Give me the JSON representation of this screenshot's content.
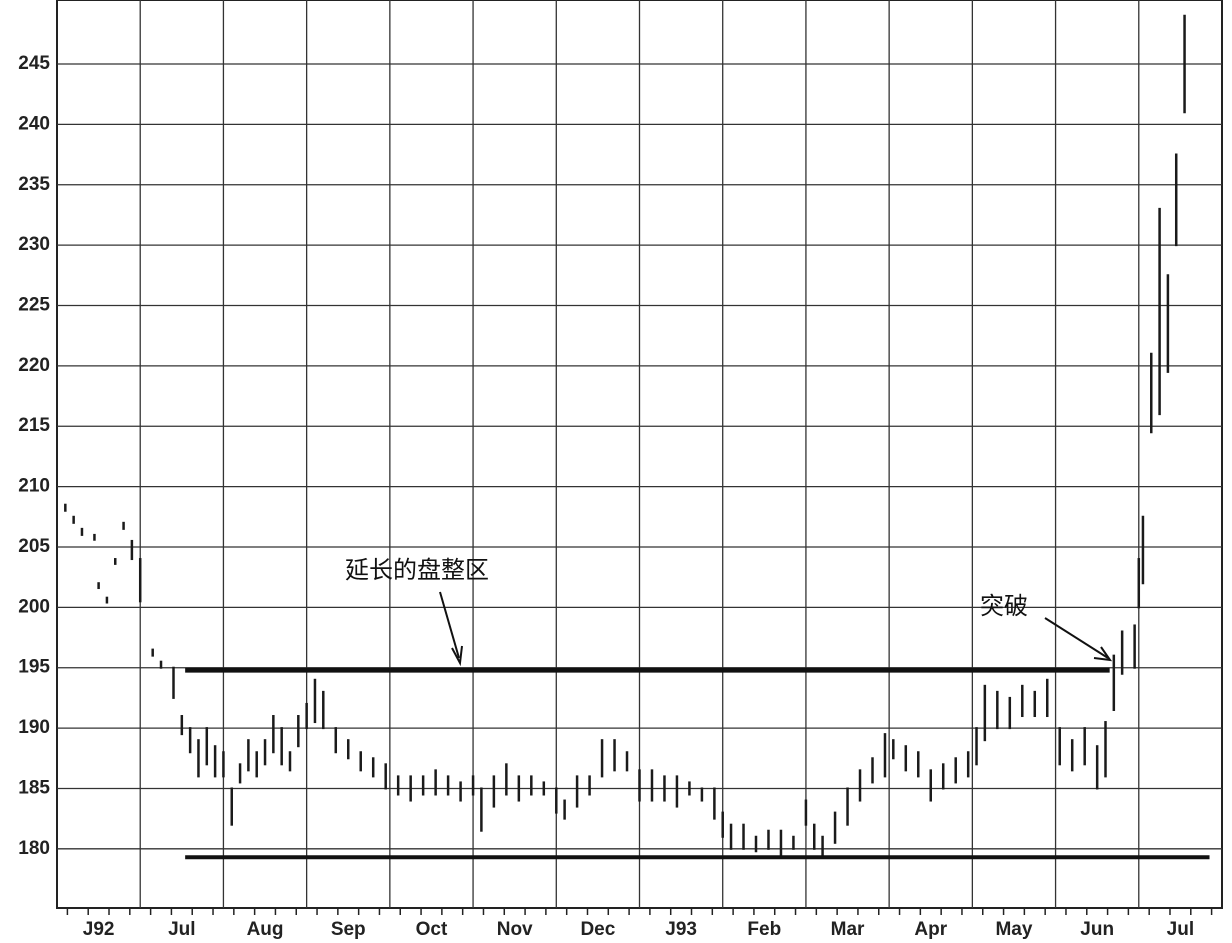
{
  "chart_data": {
    "type": "hilo",
    "categories": [
      "J92",
      "Jul",
      "Aug",
      "Sep",
      "Oct",
      "Nov",
      "Dec",
      "J93",
      "Feb",
      "Mar",
      "Apr",
      "May",
      "Jun",
      "Jul"
    ],
    "xlim": [
      0,
      14
    ],
    "ylim": [
      175.1,
      250.3
    ],
    "yticks": [
      180,
      185,
      190,
      195,
      200,
      205,
      210,
      215,
      220,
      225,
      230,
      235,
      240,
      245
    ],
    "grid": true,
    "series": [
      {
        "color": "#1a1a1a",
        "x": [
          0.1,
          0.2,
          0.3,
          0.45,
          0.5,
          0.6,
          0.7,
          0.8,
          0.9,
          1.0,
          1.15,
          1.25,
          1.4,
          1.5,
          1.6,
          1.7,
          1.8,
          1.9,
          2.0,
          2.1,
          2.2,
          2.3,
          2.4,
          2.5,
          2.6,
          2.7,
          2.8,
          2.9,
          3.0,
          3.1,
          3.2,
          3.35,
          3.5,
          3.65,
          3.8,
          3.95,
          4.1,
          4.25,
          4.4,
          4.55,
          4.7,
          4.85,
          5.0,
          5.1,
          5.25,
          5.4,
          5.55,
          5.7,
          5.85,
          6.0,
          6.1,
          6.25,
          6.4,
          6.55,
          6.7,
          6.85,
          7.0,
          7.15,
          7.3,
          7.45,
          7.6,
          7.75,
          7.9,
          8.0,
          8.1,
          8.25,
          8.4,
          8.55,
          8.7,
          8.85,
          9.0,
          9.1,
          9.2,
          9.35,
          9.5,
          9.65,
          9.8,
          9.95,
          10.05,
          10.2,
          10.35,
          10.5,
          10.65,
          10.8,
          10.95,
          11.05,
          11.15,
          11.3,
          11.45,
          11.6,
          11.75,
          11.9,
          12.05,
          12.2,
          12.35,
          12.5,
          12.6,
          12.7,
          12.8,
          12.95,
          13.0,
          13.05,
          13.15,
          13.25,
          13.35,
          13.45,
          13.55
        ],
        "high": [
          208.5,
          207.5,
          206.5,
          206,
          202,
          200.8,
          204,
          207,
          205.5,
          204,
          196.5,
          195.5,
          195,
          191,
          190,
          189,
          190,
          188.5,
          188,
          185,
          187,
          189,
          188,
          189,
          191,
          190,
          188,
          191,
          192,
          194,
          193,
          190,
          189,
          188,
          187.5,
          187,
          186,
          186,
          186,
          186.5,
          186,
          185.5,
          186,
          185,
          186,
          187,
          186,
          186,
          185.5,
          185,
          184,
          186,
          186,
          189,
          189,
          188,
          186.5,
          186.5,
          186,
          186,
          185.5,
          185,
          185,
          183,
          182,
          182,
          181,
          181.5,
          181.5,
          181,
          184,
          182,
          181,
          183,
          185,
          186.5,
          187.5,
          189.5,
          189,
          188.5,
          188,
          186.5,
          187,
          187.5,
          188,
          190,
          193.5,
          193,
          192.5,
          193.5,
          193,
          194,
          190,
          189,
          190,
          188.5,
          190.5,
          196,
          198,
          198.5,
          204,
          207.5,
          221,
          233,
          227.5,
          237.5,
          249
        ],
        "low": [
          208,
          207,
          206,
          205.6,
          201.6,
          200.4,
          203.6,
          206.5,
          204,
          200.5,
          196,
          195,
          192.5,
          189.5,
          188,
          186,
          187,
          186,
          186,
          182,
          185.5,
          186.5,
          186,
          187,
          188,
          187,
          186.5,
          188.5,
          190,
          190.5,
          190,
          188,
          187.5,
          186.5,
          186,
          185,
          184.5,
          184,
          184.5,
          184.5,
          184.5,
          184,
          184.5,
          181.5,
          183.5,
          184.5,
          184,
          184.5,
          184.5,
          183,
          182.5,
          183.5,
          184.5,
          186,
          186.5,
          186.5,
          184,
          184,
          184,
          183.5,
          184.5,
          184,
          182.5,
          181,
          180,
          180,
          179.8,
          180,
          179.5,
          180,
          182,
          180,
          179.5,
          180.5,
          182,
          184,
          185.5,
          186,
          187.5,
          186.5,
          186,
          184,
          185,
          185.5,
          186,
          187,
          189,
          190,
          190,
          191,
          191,
          191,
          187,
          186.5,
          187,
          185,
          186,
          191.5,
          194.5,
          195,
          200,
          202,
          214.5,
          216,
          219.5,
          230,
          241
        ]
      }
    ],
    "reference_lines": [
      {
        "value": 194.8,
        "x_start": 1.54,
        "x_end": 12.65
      },
      {
        "value": 179.3,
        "x_start": 1.54,
        "x_end": 13.85
      }
    ],
    "annotations": [
      {
        "text": "延长的盘整区"
      },
      {
        "text": "突破"
      }
    ]
  }
}
